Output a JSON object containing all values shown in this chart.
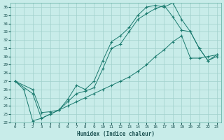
{
  "xlabel": "Humidex (Indice chaleur)",
  "background_color": "#c8ece9",
  "grid_color": "#a0d0cc",
  "line_color": "#1a7a6e",
  "xlim": [
    -0.5,
    23.5
  ],
  "ylim": [
    22,
    36.5
  ],
  "yticks": [
    22,
    23,
    24,
    25,
    26,
    27,
    28,
    29,
    30,
    31,
    32,
    33,
    34,
    35,
    36
  ],
  "xticks": [
    0,
    1,
    2,
    3,
    4,
    5,
    6,
    7,
    8,
    9,
    10,
    11,
    12,
    13,
    14,
    15,
    16,
    17,
    18,
    19,
    20,
    21,
    22,
    23
  ],
  "series": [
    {
      "x": [
        0,
        2,
        3,
        4,
        5,
        6,
        7,
        8,
        9,
        10,
        11,
        12,
        13,
        14,
        15,
        16,
        17,
        18,
        19,
        20,
        21,
        22,
        23
      ],
      "y": [
        27.0,
        26.0,
        23.2,
        23.3,
        23.5,
        24.8,
        26.5,
        26.0,
        27.0,
        29.5,
        31.8,
        32.5,
        33.5,
        35.0,
        36.0,
        36.2,
        36.0,
        36.5,
        34.5,
        33.0,
        31.0,
        29.5,
        30.0
      ]
    },
    {
      "x": [
        0,
        2,
        3,
        4,
        5,
        6,
        7,
        8,
        9,
        10,
        11,
        12,
        13,
        14,
        15,
        16,
        17,
        18,
        19,
        20,
        21,
        22,
        23
      ],
      "y": [
        27.0,
        25.5,
        22.5,
        23.0,
        23.5,
        24.5,
        25.5,
        25.8,
        26.2,
        28.5,
        31.0,
        31.5,
        33.0,
        34.5,
        35.2,
        35.8,
        36.2,
        34.8,
        33.2,
        33.0,
        31.0,
        29.5,
        30.2
      ]
    },
    {
      "x": [
        0,
        1,
        2,
        3,
        4,
        5,
        6,
        7,
        8,
        9,
        10,
        11,
        12,
        13,
        14,
        15,
        16,
        17,
        18,
        19,
        20,
        21,
        22,
        23
      ],
      "y": [
        27.0,
        26.0,
        22.2,
        22.5,
        23.0,
        23.5,
        24.0,
        24.5,
        25.0,
        25.5,
        26.0,
        26.5,
        27.0,
        27.5,
        28.2,
        29.0,
        30.0,
        30.8,
        31.8,
        32.5,
        29.8,
        29.8,
        30.0,
        30.2
      ]
    }
  ]
}
